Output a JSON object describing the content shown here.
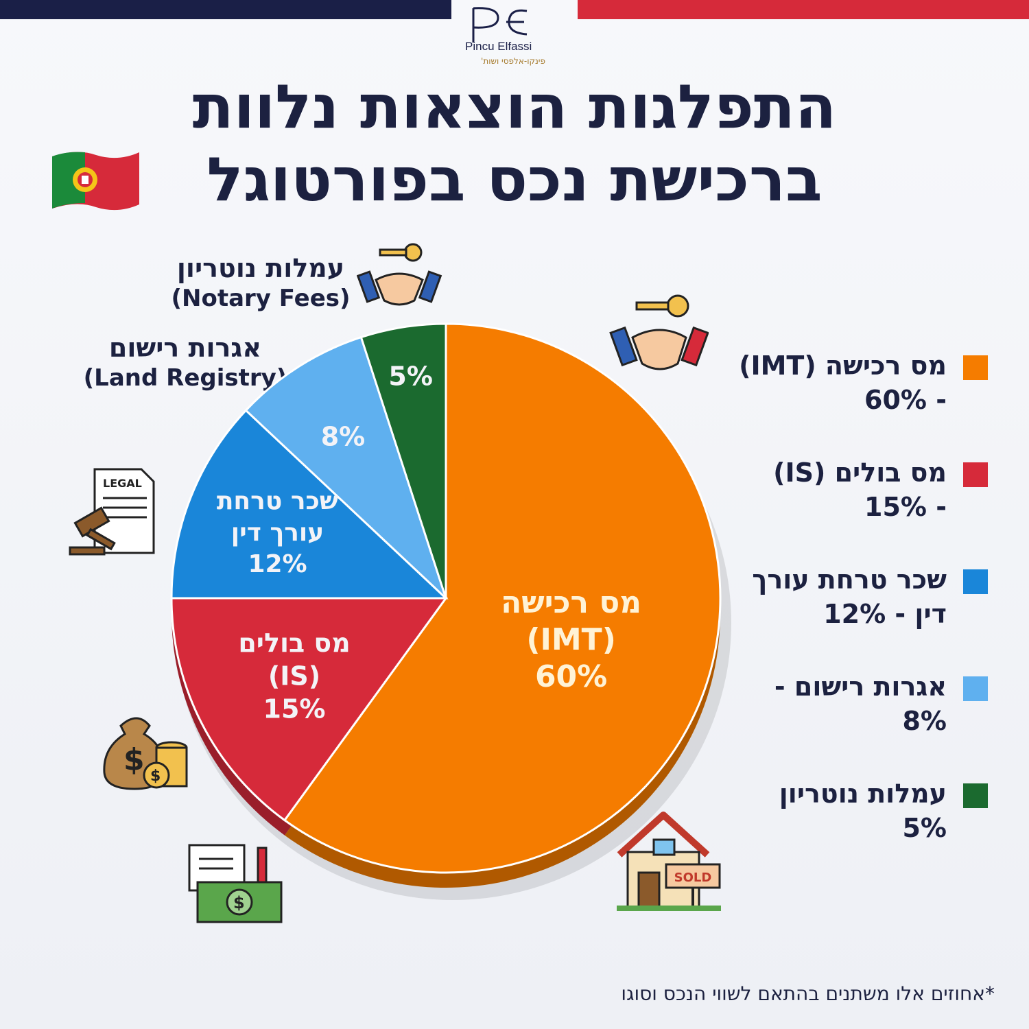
{
  "header": {
    "logo_mark": "PE",
    "logo_text_en": "Pincu Elfassi",
    "logo_text_he": "פינקו-אלפסי ושות'",
    "title_line1": "התפלגות הוצאות נלוות",
    "title_line2": "ברכישת נכס בפורטוגל"
  },
  "callouts": {
    "notary_he": "עמלות נוטריון",
    "notary_en": "(Notary Fees)",
    "registry_he": "אגרות רישום",
    "registry_en": "(Land Registry)"
  },
  "legend": [
    {
      "label": "מס רכישה (IMT)",
      "value": "- 60%",
      "color": "#f57c00"
    },
    {
      "label": "מס בולים (IS)",
      "value": "- 15%",
      "color": "#d62a3a"
    },
    {
      "label": "שכר טרחת עורך",
      "value": "דין - 12%",
      "color": "#1a86d9"
    },
    {
      "label": "אגרות רישום -",
      "value": "8%",
      "color": "#5fb0ef"
    },
    {
      "label": "עמלות נוטריון",
      "value": "5%",
      "color": "#1b6a2f"
    }
  ],
  "chart_data": {
    "type": "pie",
    "title": "התפלגות הוצאות נלוות ברכישת נכס בפורטוגל",
    "slices": [
      {
        "label": "מס רכישה (IMT)",
        "value": 60,
        "color": "#f57c00",
        "text_lines": [
          "מס רכישה",
          "(IMT)",
          "60%"
        ]
      },
      {
        "label": "מס בולים (IS)",
        "value": 15,
        "color": "#d62a3a",
        "text_lines": [
          "מס בולים",
          "(IS)",
          "15%"
        ]
      },
      {
        "label": "שכר טרחת עורך דין",
        "value": 12,
        "color": "#1a86d9",
        "text_lines": [
          "שכר טרחת",
          "עורך דין",
          "12%"
        ]
      },
      {
        "label": "אגרות רישום",
        "value": 8,
        "color": "#5fb0ef",
        "text_lines": [
          "8%"
        ]
      },
      {
        "label": "עמלות נוטריון",
        "value": 5,
        "color": "#1b6a2f",
        "text_lines": [
          "5%"
        ]
      }
    ]
  },
  "icons": {
    "house_sign": "SOLD",
    "document_label": "LEGAL"
  },
  "footnote": "*אחוזים אלו משתנים בהתאם לשווי הנכס וסוגו"
}
